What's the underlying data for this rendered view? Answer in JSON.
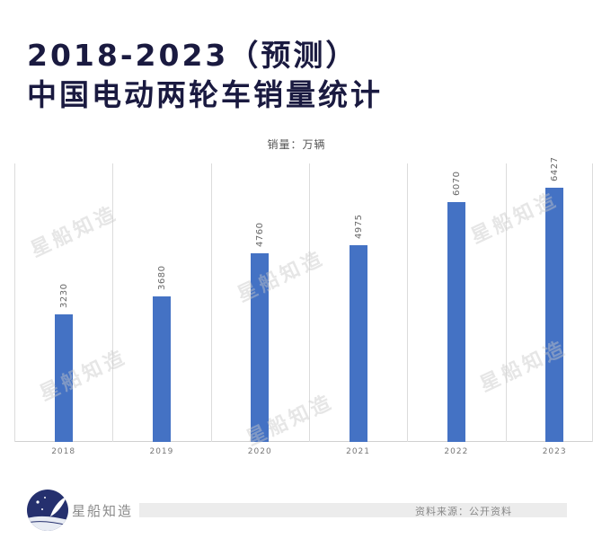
{
  "header": {
    "title_line1": "2018-2023（预测）",
    "title_line2": "中国电动两轮车销量统计"
  },
  "chart_data": {
    "type": "bar",
    "title": "2018-2023（预测）中国电动两轮车销量统计",
    "subtitle": "销量：万辆",
    "xlabel": "",
    "ylabel": "销量（万辆）",
    "categories": [
      "2018",
      "2019",
      "2020",
      "2021",
      "2022",
      "2023"
    ],
    "values": [
      3230,
      3680,
      4760,
      4975,
      6070,
      6427
    ],
    "data_labels": [
      "3230",
      "3680",
      "4760",
      "4975",
      "6070",
      "6427"
    ],
    "ylim": [
      0,
      7000
    ],
    "grid": "vertical category separators",
    "legend": "none",
    "bar_color": "#4472C4"
  },
  "chart": {
    "unit_label": "销量：万辆"
  },
  "watermark": {
    "text": "星船知造"
  },
  "footer": {
    "brand": "星船知造",
    "source": "资料来源：公开资料"
  },
  "colors": {
    "title": "#1a1a40",
    "bar": "#4472C4",
    "logo_bg": "#25306e"
  }
}
